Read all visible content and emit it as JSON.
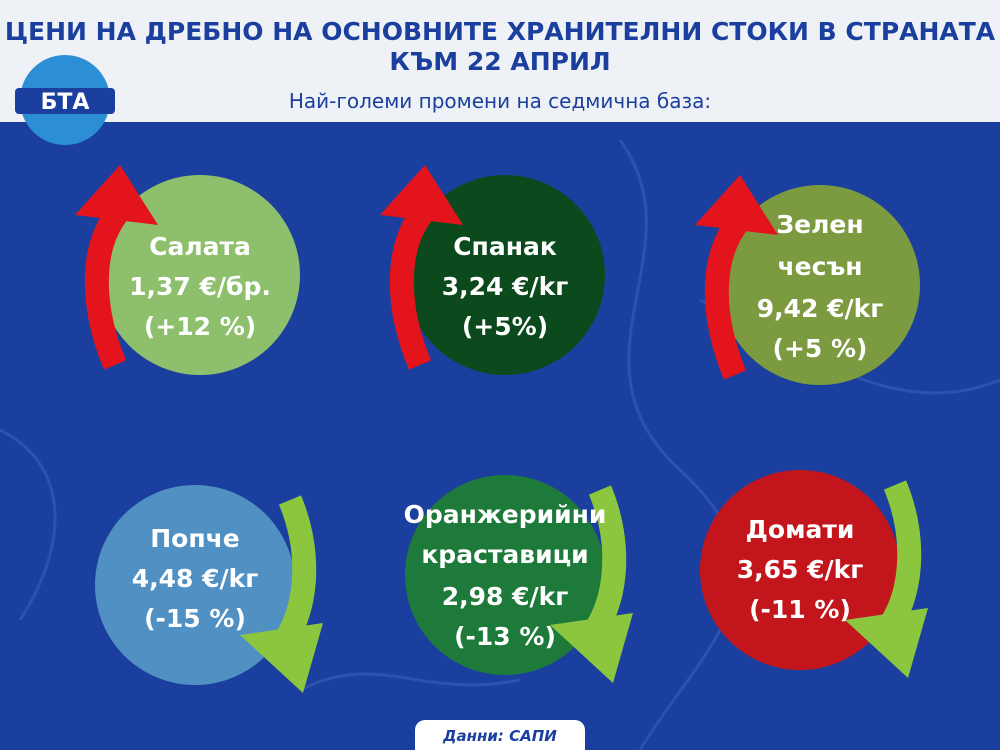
{
  "header": {
    "logo": "БТА",
    "title_lines": [
      "ЦЕНИ НА ДРЕБНО НА ОСНОВНИТЕ ХРАНИТЕЛНИ СТОКИ В СТРАНАТА",
      "КЪМ 22 АПРИЛ"
    ],
    "subtitle": "Най-големи промени на седмична база:"
  },
  "items": [
    {
      "name_lines": [
        "Салата"
      ],
      "price": "1,37 €/бр.",
      "change": "(+12 %)"
    },
    {
      "name_lines": [
        "Спанак"
      ],
      "price": "3,24 €/kг",
      "change": "(+5%)"
    },
    {
      "name_lines": [
        "Зелен",
        "чесън"
      ],
      "price": "9,42 €/kг",
      "change": "(+5 %)"
    },
    {
      "name_lines": [
        "Попче"
      ],
      "price": "4,48 €/kг",
      "change": "(-15 %)"
    },
    {
      "name_lines": [
        "Оранжерийни",
        "краставици"
      ],
      "price": "2,98 €/kг",
      "change": "(-13 %)"
    },
    {
      "name_lines": [
        "Домати"
      ],
      "price": "3,65 €/kг",
      "change": "(-11 %)"
    }
  ],
  "footer": {
    "source": "Данни: САПИ"
  }
}
